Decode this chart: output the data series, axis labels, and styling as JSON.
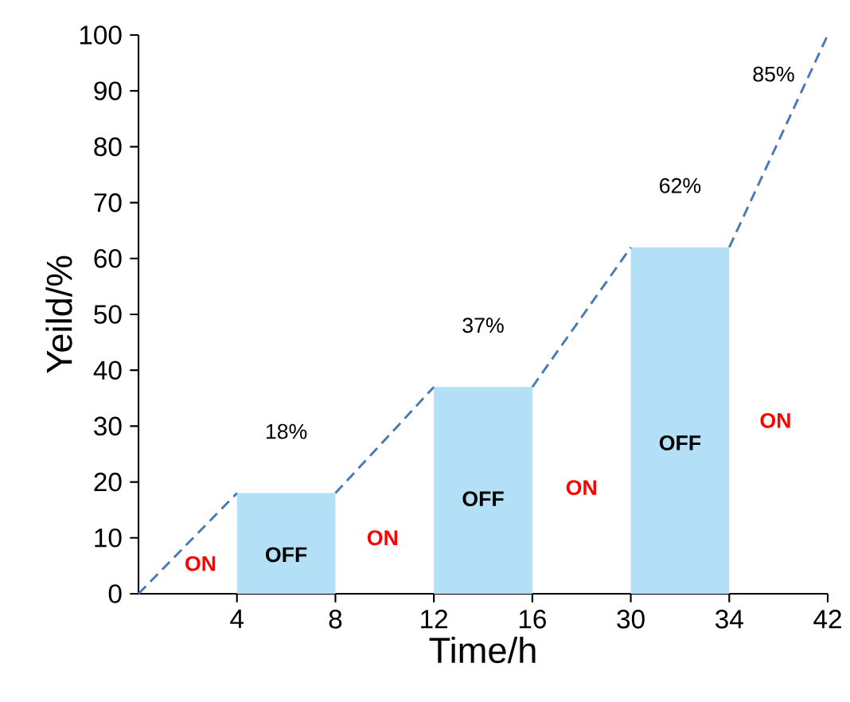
{
  "chart_data": {
    "type": "bar",
    "xlabel": "Time/h",
    "ylabel": "Yeild/%",
    "categories": [
      null,
      null,
      "4",
      null,
      "8",
      null,
      "12",
      null,
      "16",
      null,
      "30",
      null,
      "34",
      null,
      "42"
    ],
    "ylim": [
      0,
      100
    ],
    "yticks": [
      0,
      10,
      20,
      30,
      40,
      50,
      60,
      70,
      80,
      90,
      100
    ],
    "series": [
      {
        "color": "#b3e0f7",
        "values": [
          null,
          null,
          null,
          18,
          null,
          null,
          null,
          37,
          null,
          null,
          null,
          62,
          null,
          null,
          null
        ],
        "value_labels": [
          null,
          null,
          null,
          "18%",
          null,
          null,
          null,
          "37%",
          null,
          null,
          null,
          "62%",
          null,
          null,
          null
        ]
      },
      {
        "type": "line",
        "color": "#4a7ab5",
        "line_style": "dashed",
        "values": [
          0,
          9,
          18,
          null,
          null,
          null,
          null,
          null,
          null,
          null,
          null,
          null,
          null,
          null,
          null
        ]
      },
      {
        "type": "line",
        "color": "#4a7ab5",
        "line_style": "dashed",
        "values": [
          null,
          null,
          null,
          null,
          18,
          27.5,
          37,
          null,
          null,
          null,
          null,
          null,
          null,
          null,
          null
        ]
      },
      {
        "type": "line",
        "color": "#4a7ab5",
        "line_style": "dashed",
        "values": [
          null,
          null,
          null,
          null,
          null,
          null,
          null,
          null,
          37,
          49.5,
          62,
          null,
          null,
          null,
          null
        ]
      },
      {
        "type": "line",
        "color": "#4a7ab5",
        "line_style": "dashed",
        "values": [
          null,
          null,
          null,
          null,
          null,
          null,
          null,
          null,
          null,
          null,
          null,
          null,
          62,
          81,
          100
        ]
      }
    ],
    "annotations": [
      "85%",
      "**OFF**",
      "**OFF**",
      "**OFF**",
      "**ON**",
      "**ON**",
      "**ON**",
      "**ON**"
    ]
  }
}
